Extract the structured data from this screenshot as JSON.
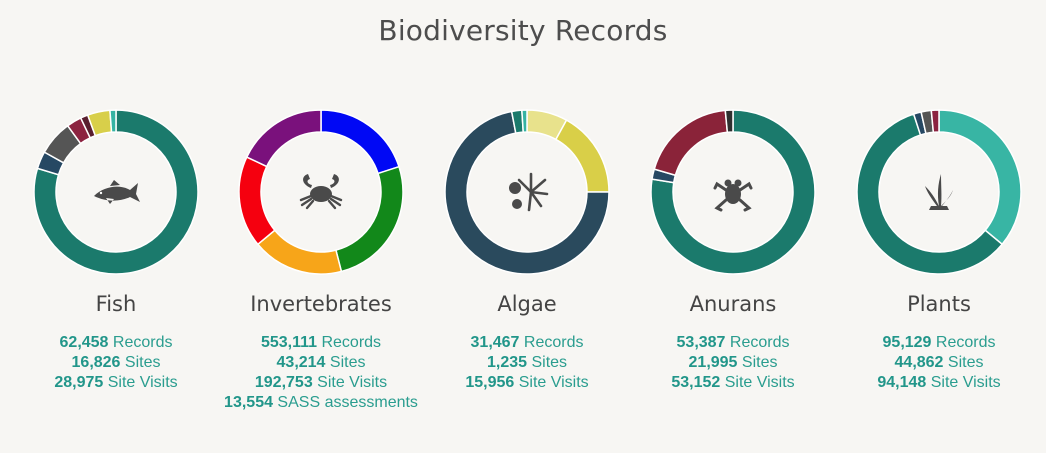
{
  "title": "Biodiversity Records",
  "chart_data": [
    {
      "type": "pie",
      "name": "Fish",
      "icon": "fish-icon",
      "slices": [
        {
          "value": 0.81,
          "color": "#1b7a6c"
        },
        {
          "value": 0.035,
          "color": "#264863"
        },
        {
          "value": 0.07,
          "color": "#555555"
        },
        {
          "value": 0.03,
          "color": "#8c2340"
        },
        {
          "value": 0.015,
          "color": "#5a1f2f"
        },
        {
          "value": 0.045,
          "color": "#d8cf4a"
        },
        {
          "value": 0.012,
          "color": "#35b3a3"
        }
      ],
      "stats": [
        {
          "value": "62,458",
          "label": "Records"
        },
        {
          "value": "16,826",
          "label": "Sites"
        },
        {
          "value": "28,975",
          "label": "Site Visits"
        }
      ]
    },
    {
      "type": "pie",
      "name": "Invertebrates",
      "icon": "crab-icon",
      "slices": [
        {
          "value": 0.2,
          "color": "#0008f5"
        },
        {
          "value": 0.26,
          "color": "#12881a"
        },
        {
          "value": 0.18,
          "color": "#f7a519"
        },
        {
          "value": 0.18,
          "color": "#f5000f"
        },
        {
          "value": 0.18,
          "color": "#7a117c"
        }
      ],
      "stats": [
        {
          "value": "553,111",
          "label": "Records"
        },
        {
          "value": "43,214",
          "label": "Sites"
        },
        {
          "value": "192,753",
          "label": "Site Visits"
        },
        {
          "value": "13,554",
          "label": "SASS assessments"
        }
      ]
    },
    {
      "type": "pie",
      "name": "Algae",
      "icon": "algae-icon",
      "slices": [
        {
          "value": 0.08,
          "color": "#e8e28c"
        },
        {
          "value": 0.17,
          "color": "#d9cf48"
        },
        {
          "value": 0.72,
          "color": "#2a4a5d"
        },
        {
          "value": 0.02,
          "color": "#1b7a6c"
        },
        {
          "value": 0.01,
          "color": "#35b3a3"
        }
      ],
      "stats": [
        {
          "value": "31,467",
          "label": "Records"
        },
        {
          "value": "1,235",
          "label": "Sites"
        },
        {
          "value": "15,956",
          "label": "Site Visits"
        }
      ]
    },
    {
      "type": "pie",
      "name": "Anurans",
      "icon": "frog-icon",
      "slices": [
        {
          "value": 0.775,
          "color": "#1b7a6c"
        },
        {
          "value": 0.02,
          "color": "#264863"
        },
        {
          "value": 0.19,
          "color": "#8a2339"
        },
        {
          "value": 0.015,
          "color": "#2f2f2f"
        }
      ],
      "stats": [
        {
          "value": "53,387",
          "label": "Records"
        },
        {
          "value": "21,995",
          "label": "Sites"
        },
        {
          "value": "53,152",
          "label": "Site Visits"
        }
      ]
    },
    {
      "type": "pie",
      "name": "Plants",
      "icon": "plant-icon",
      "slices": [
        {
          "value": 0.36,
          "color": "#38b5a4"
        },
        {
          "value": 0.59,
          "color": "#1b7a6c"
        },
        {
          "value": 0.015,
          "color": "#264863"
        },
        {
          "value": 0.02,
          "color": "#555555"
        },
        {
          "value": 0.015,
          "color": "#8c2340"
        }
      ],
      "stats": [
        {
          "value": "95,129",
          "label": "Records"
        },
        {
          "value": "44,862",
          "label": "Sites"
        },
        {
          "value": "94,148",
          "label": "Site Visits"
        }
      ]
    }
  ]
}
